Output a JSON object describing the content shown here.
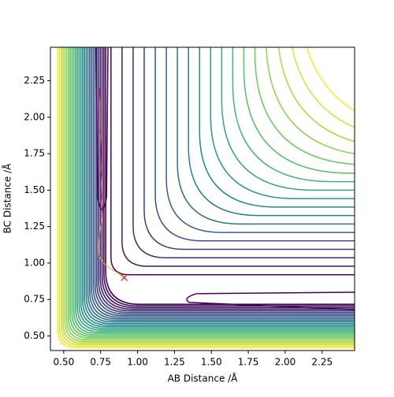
{
  "chart_data": {
    "type": "contour",
    "x_label": "AB Distance /Å",
    "y_label": "BC Distance /Å",
    "xlim": [
      0.41,
      2.47
    ],
    "ylim": [
      0.4,
      2.48
    ],
    "xticks": [
      {
        "value": 0.5,
        "label": "0.50"
      },
      0.75,
      {
        "value": 1.0,
        "label": "1.00"
      },
      1.25,
      {
        "value": 1.5,
        "label": "1.50"
      },
      1.75,
      {
        "value": 2.0,
        "label": "2.00"
      },
      2.25
    ],
    "yticks": [
      {
        "value": 0.5,
        "label": "0.50"
      },
      0.75,
      {
        "value": 1.0,
        "label": "1.00"
      },
      1.25,
      {
        "value": 1.5,
        "label": "1.50"
      },
      1.75,
      {
        "value": 2.0,
        "label": "2.00"
      },
      2.25
    ],
    "series": [
      {
        "color": "#d62728",
        "x": [
          0.74,
          0.75,
          0.745,
          0.755,
          0.75,
          0.76,
          0.755,
          0.765,
          0.76
        ],
        "y": [
          2.2,
          2.05,
          1.9,
          1.78,
          1.65,
          1.55,
          1.45,
          1.38,
          1.3
        ]
      },
      {
        "color": "#f5a623",
        "x": [
          0.76,
          0.745,
          0.735,
          0.74,
          0.77,
          0.82,
          0.87,
          0.91
        ],
        "y": [
          1.3,
          1.22,
          1.12,
          1.05,
          1.0,
          0.96,
          0.93,
          0.9
        ]
      }
    ],
    "marker": {
      "x": 0.91,
      "y": 0.9,
      "color": "#e31a1c"
    }
  }
}
